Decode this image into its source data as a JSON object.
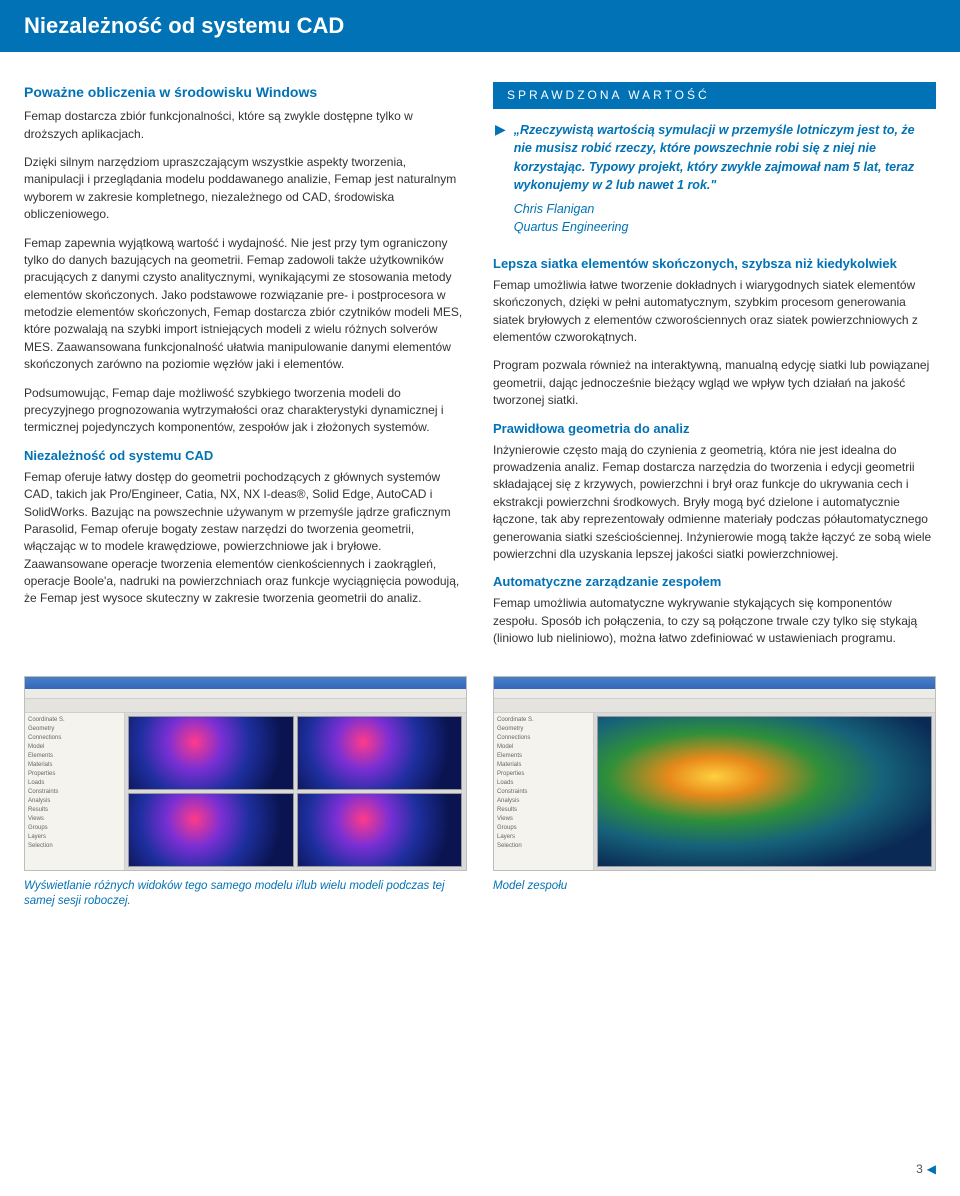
{
  "page_title": "Niezależność od systemu CAD",
  "left": {
    "subtitle": "Poważne obliczenia w środowisku Windows",
    "p1": "Femap dostarcza zbiór funkcjonalności, które są zwykle dostępne tylko w droższych aplikacjach.",
    "p2": "Dzięki silnym narzędziom upraszczającym wszystkie aspekty tworzenia, manipulacji i przeglądania modelu poddawanego analizie, Femap jest naturalnym wyborem w zakresie kompletnego, niezależnego od CAD, środowiska obliczeniowego.",
    "p3": "Femap zapewnia wyjątkową wartość i wydajność. Nie jest przy tym ograniczony tylko do danych bazujących na geometrii. Femap zadowoli także użytkowników pracujących z danymi czysto analitycznymi, wynikającymi ze stosowania metody elementów skończonych. Jako podstawowe rozwiązanie pre- i postprocesora w metodzie elementów skończonych, Femap dostarcza zbiór czytników modeli MES, które pozwalają na szybki import istniejących modeli z wielu różnych solverów MES. Zaawansowana funkcjonalność ułatwia manipulowanie danymi elementów skończonych zarówno na poziomie węzłów jaki i elementów.",
    "p4": "Podsumowując, Femap daje możliwość szybkiego tworzenia modeli do precyzyjnego prognozowania wytrzymałości oraz charakterystyki dynamicznej i termicznej pojedynczych komponentów, zespołów jak i złożonych systemów.",
    "h2": "Niezależność od systemu CAD",
    "p5": "Femap oferuje łatwy dostęp do geometrii pochodzących z głównych systemów CAD, takich jak Pro/Engineer, Catia, NX, NX I-deas®, Solid Edge, AutoCAD i SolidWorks. Bazując na powszechnie używanym w przemyśle jądrze graficznym Parasolid, Femap oferuje bogaty zestaw narzędzi do tworzenia geometrii, włączając w to modele krawędziowe, powierzchniowe jak i bryłowe. Zaawansowane operacje tworzenia elementów cienkościennych i zaokrągleń, operacje Boole'a, nadruki na powierzchniach oraz funkcje wyciągnięcia powodują, że Femap jest wysoce skuteczny w zakresie tworzenia geometrii do analiz."
  },
  "right": {
    "callout_label": "SPRAWDZONA WARTOŚĆ",
    "quote": "„Rzeczywistą wartością symulacji w przemyśle lotniczym jest to, że nie musisz robić rzeczy, które powszechnie robi się z niej nie korzystając. Typowy projekt, który zwykle zajmował nam 5 lat, teraz wykonujemy w 2 lub nawet 1 rok.\"",
    "author1": "Chris Flanigan",
    "author2": "Quartus Engineering",
    "h1": "Lepsza siatka elementów skończonych, szybsza niż kiedykolwiek",
    "p1": "Femap umożliwia łatwe tworzenie dokładnych i wiarygodnych siatek elementów skończonych, dzięki w pełni automatycznym, szybkim procesom generowania siatek bryłowych z elementów czworościennych oraz siatek powierzchniowych z elementów czworokątnych.",
    "p1b": "Program pozwala również na interaktywną, manualną edycję siatki lub powiązanej geometrii, dając jednocześnie bieżący wgląd we wpływ tych działań na jakość tworzonej siatki.",
    "h2": "Prawidłowa geometria do analiz",
    "p2": "Inżynierowie często mają do czynienia z geometrią, która nie jest idealna do prowadzenia analiz. Femap dostarcza narzędzia do tworzenia i edycji geometrii składającej się z krzywych, powierzchni i brył oraz funkcje do ukrywania cech i ekstrakcji powierzchni środkowych. Bryły mogą być dzielone i automatycznie łączone, tak aby reprezentowały odmienne materiały podczas półautomatycznego generowania siatki sześciościennej. Inżynierowie mogą także łączyć ze sobą wiele powierzchni dla uzyskania lepszej jakości siatki powierzchniowej.",
    "h3": "Automatyczne zarządzanie zespołem",
    "p3": "Femap umożliwia automatyczne wykrywanie stykających się komponentów zespołu. Sposób ich połączenia, to czy są połączone trwale czy tylko się stykają (liniowo lub nieliniowo), można łatwo zdefiniować w ustawieniach programu."
  },
  "captions": {
    "left": "Wyświetlanie różnych widoków tego samego modelu i/lub wielu modeli podczas tej samej sesji roboczej.",
    "right": "Model zespołu"
  },
  "page_number": "3",
  "sidebar_items": [
    "Coordinate S.",
    "Geometry",
    "Connections",
    "Model",
    "  Elements",
    "  Materials",
    "  Properties",
    "  Loads",
    "  Constraints",
    "Analysis",
    "Results",
    "Views",
    "Groups",
    "Layers",
    "Selection"
  ]
}
